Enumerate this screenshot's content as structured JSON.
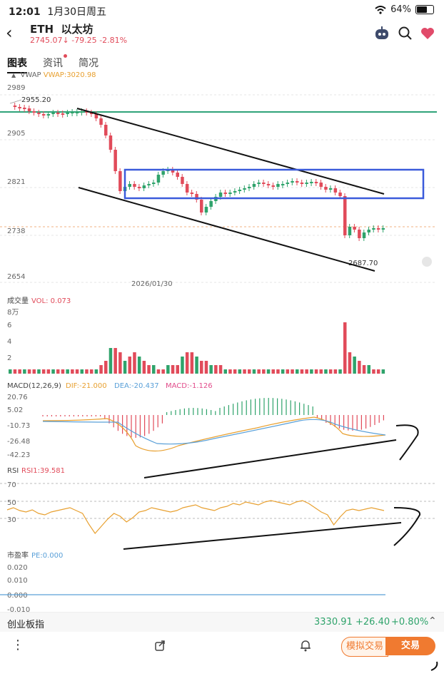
{
  "status_bar": {
    "time": "12:01",
    "date": "1月30日周五",
    "wifi_icon": "wifi-icon",
    "battery": "64%"
  },
  "header": {
    "symbol": "ETH",
    "name": "以太坊",
    "price": "2745.07",
    "arrow": "↓",
    "change": "-79.25",
    "change_pct": "-2.81%"
  },
  "tabs": [
    {
      "label": "图表",
      "active": true
    },
    {
      "label": "资讯",
      "badge": true
    },
    {
      "label": "简况"
    }
  ],
  "indicator_toggle": "▲",
  "vwap": {
    "label": "VWAP",
    "value": "VWAP:3020.98"
  },
  "price_axis": [
    "2989",
    "2905",
    "2821",
    "2738",
    "2654"
  ],
  "price_marks": {
    "high": "2955.20",
    "low": "2687.70"
  },
  "date_label": "2026/01/30",
  "volume": {
    "title": "成交量",
    "value": "VOL: 0.073",
    "unit": "8万",
    "axis": [
      "6",
      "4",
      "2"
    ]
  },
  "macd": {
    "title": "MACD(12,26,9)",
    "dif": "DIF:-21.000",
    "dea": "DEA:-20.437",
    "macd": "MACD:-1.126",
    "axis": [
      "20.76",
      "5.02",
      "-10.73",
      "-26.48",
      "-42.23"
    ]
  },
  "rsi": {
    "title": "RSI",
    "value": "RSI1:39.581",
    "axis": [
      "70",
      "50",
      "30"
    ]
  },
  "pe": {
    "title": "市盈率",
    "value": "PE:0.000",
    "axis": [
      "0.020",
      "0.010",
      "0.000",
      "-0.010"
    ]
  },
  "ticker": {
    "name": "创业板指",
    "price": "3330.91",
    "change": "+26.40",
    "change_pct": "+0.80%"
  },
  "bottom": {
    "sim_trade": "模拟交易",
    "trade": "交易"
  },
  "colors": {
    "up": "#e14b5a",
    "down": "#2fa36b",
    "vwap": "#2fa37a",
    "box": "#3b5bdb",
    "dif": "#e8a030",
    "dea": "#5aa0d8"
  }
}
